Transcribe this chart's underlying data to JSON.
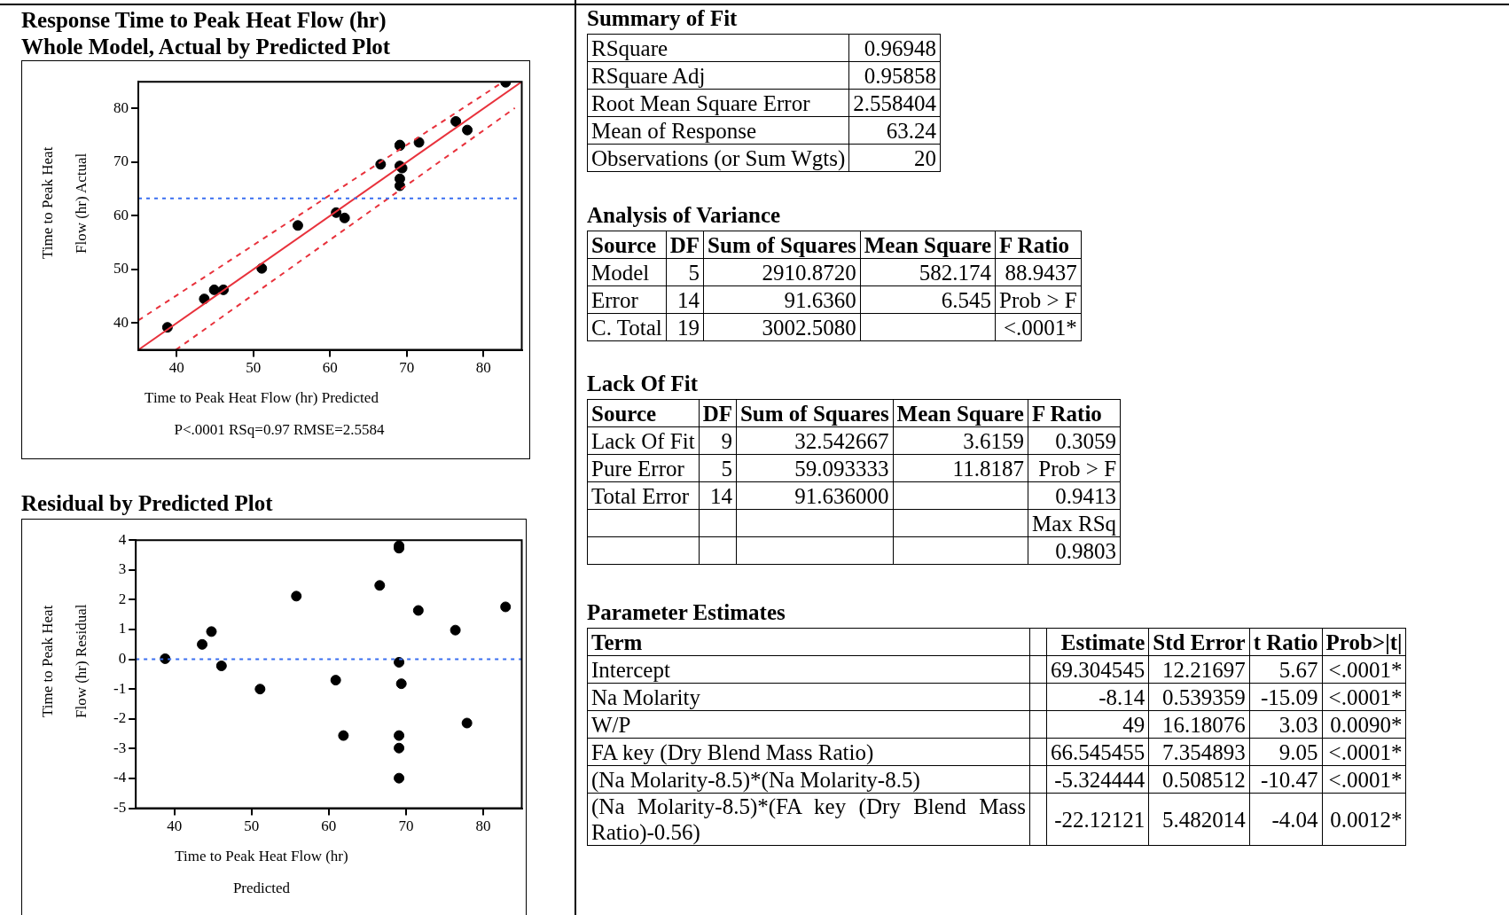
{
  "chart_data": [
    {
      "type": "scatter",
      "title": "Response Time to Peak Heat Flow (hr)",
      "subtitle": "Whole Model, Actual by Predicted Plot",
      "xlabel": "Time to Peak Heat Flow (hr) Predicted",
      "ylabel": "Time to Peak Heat Flow (hr) Actual",
      "annotations": [
        "P<.0001 RSq=0.97 RMSE=2.5584"
      ],
      "xlim": [
        35,
        85
      ],
      "ylim": [
        35,
        85
      ],
      "xticks": [
        40,
        50,
        60,
        70,
        80
      ],
      "yticks": [
        40,
        50,
        60,
        70,
        80
      ],
      "grid": false,
      "legend": false,
      "series": [
        {
          "type": "line",
          "color": "#e8323c",
          "line_style": "solid",
          "x": [
            35,
            85
          ],
          "values": [
            35,
            85
          ]
        },
        {
          "type": "line",
          "color": "#e8323c",
          "line_style": "dashed",
          "x": [
            35,
            82.6
          ],
          "values": [
            40.5,
            85
          ]
        },
        {
          "type": "line",
          "color": "#e8323c",
          "line_style": "dashed",
          "x": [
            39.9,
            84.1
          ],
          "values": [
            35,
            80.1
          ]
        },
        {
          "type": "scatter",
          "color": "#000000",
          "marker": "circle",
          "x": [
            38.8,
            43.6,
            44.9,
            46.1,
            51.1,
            55.8,
            60.8,
            61.9,
            66.6,
            69.1,
            69.1,
            69.1,
            69.4,
            69.1,
            69.1,
            71.6,
            76.4,
            77.9,
            82.9
          ],
          "values": [
            39.2,
            44.5,
            46.2,
            46.2,
            50.2,
            58.2,
            60.6,
            59.6,
            69.6,
            73.2,
            73.1,
            69.3,
            68.9,
            66.9,
            65.6,
            73.7,
            77.6,
            76.0,
            84.9
          ]
        }
      ],
      "ref_lines": [
        {
          "axis": "y",
          "value": 63.24,
          "color": "#3b6ff0",
          "line_style": "dotted"
        }
      ]
    },
    {
      "type": "scatter",
      "title": "Residual by Predicted Plot",
      "xlabel": "Time to Peak Heat Flow (hr) Predicted",
      "ylabel": "Time to Peak Heat Flow (hr) Residual",
      "xlim": [
        35,
        85
      ],
      "ylim": [
        -5,
        4
      ],
      "xticks": [
        40,
        50,
        60,
        70,
        80
      ],
      "yticks": [
        -5,
        -4,
        -3,
        -2,
        -1,
        0,
        1,
        2,
        3,
        4
      ],
      "grid": false,
      "legend": false,
      "series": [
        {
          "type": "scatter",
          "color": "#000000",
          "marker": "circle",
          "x": [
            38.8,
            43.6,
            44.8,
            46.1,
            51.1,
            55.8,
            60.9,
            61.9,
            66.6,
            69.1,
            69.1,
            69.1,
            69.4,
            69.1,
            69.1,
            69.1,
            71.6,
            76.4,
            77.9,
            82.9
          ],
          "values": [
            0.02,
            0.5,
            0.93,
            -0.22,
            -1.0,
            2.12,
            -0.7,
            -2.56,
            2.48,
            3.81,
            3.73,
            -0.1,
            -0.82,
            -2.56,
            -2.98,
            -3.99,
            1.64,
            0.98,
            -2.14,
            1.76
          ]
        }
      ],
      "ref_lines": [
        {
          "axis": "y",
          "value": 0,
          "color": "#3b6ff0",
          "line_style": "dotted"
        }
      ]
    },
    {
      "type": "other",
      "title": "Summary of Fit",
      "cell_labels": [
        [
          "RSquare",
          "0.96948"
        ],
        [
          "RSquare Adj",
          "0.95858"
        ],
        [
          "Root Mean Square Error",
          "2.558404"
        ],
        [
          "Mean of Response",
          "63.24"
        ],
        [
          "Observations (or Sum Wgts)",
          "20"
        ]
      ]
    },
    {
      "type": "other",
      "title": "Analysis of Variance",
      "cell_labels": [
        [
          "Source",
          "DF",
          "Sum of Squares",
          "Mean Square",
          "F Ratio"
        ],
        [
          "Model",
          "5",
          "2910.8720",
          "582.174",
          "88.9437"
        ],
        [
          "Error",
          "14",
          "91.6360",
          "6.545",
          "Prob > F"
        ],
        [
          "C. Total",
          "19",
          "3002.5080",
          null,
          "<.0001*"
        ]
      ]
    },
    {
      "type": "other",
      "title": "Lack Of Fit",
      "cell_labels": [
        [
          "Source",
          "DF",
          "Sum of Squares",
          "Mean Square",
          "F Ratio"
        ],
        [
          "Lack Of Fit",
          "9",
          "32.542667",
          "3.6159",
          "0.3059"
        ],
        [
          "Pure Error",
          "5",
          "59.093333",
          "11.8187",
          "Prob > F"
        ],
        [
          "Total Error",
          "14",
          "91.636000",
          null,
          "0.9413"
        ],
        [
          null,
          null,
          null,
          null,
          "Max RSq"
        ],
        [
          null,
          null,
          null,
          null,
          "0.9803"
        ]
      ]
    },
    {
      "type": "other",
      "title": "Parameter Estimates",
      "cell_labels": [
        [
          "Term",
          null,
          "Estimate",
          "Std Error",
          "t Ratio",
          "Prob>|t|"
        ],
        [
          "Intercept",
          null,
          "69.304545",
          "12.21697",
          "5.67",
          "<.0001*"
        ],
        [
          "Na Molarity",
          null,
          "-8.14",
          "0.539359",
          "-15.09",
          "<.0001*"
        ],
        [
          "W/P",
          null,
          "49",
          "16.18076",
          "3.03",
          "0.0090*"
        ],
        [
          "FA key (Dry Blend Mass Ratio)",
          null,
          "66.545455",
          "7.354893",
          "9.05",
          "<.0001*"
        ],
        [
          "(Na Molarity-8.5)*(Na Molarity-8.5)",
          null,
          "-5.324444",
          "0.508512",
          "-10.47",
          "<.0001*"
        ],
        [
          "(Na Molarity-8.5)*(FA key (Dry Blend Mass Ratio)-0.56)",
          null,
          "-22.12121",
          "5.482014",
          "-4.04",
          "0.0012*"
        ]
      ]
    }
  ]
}
